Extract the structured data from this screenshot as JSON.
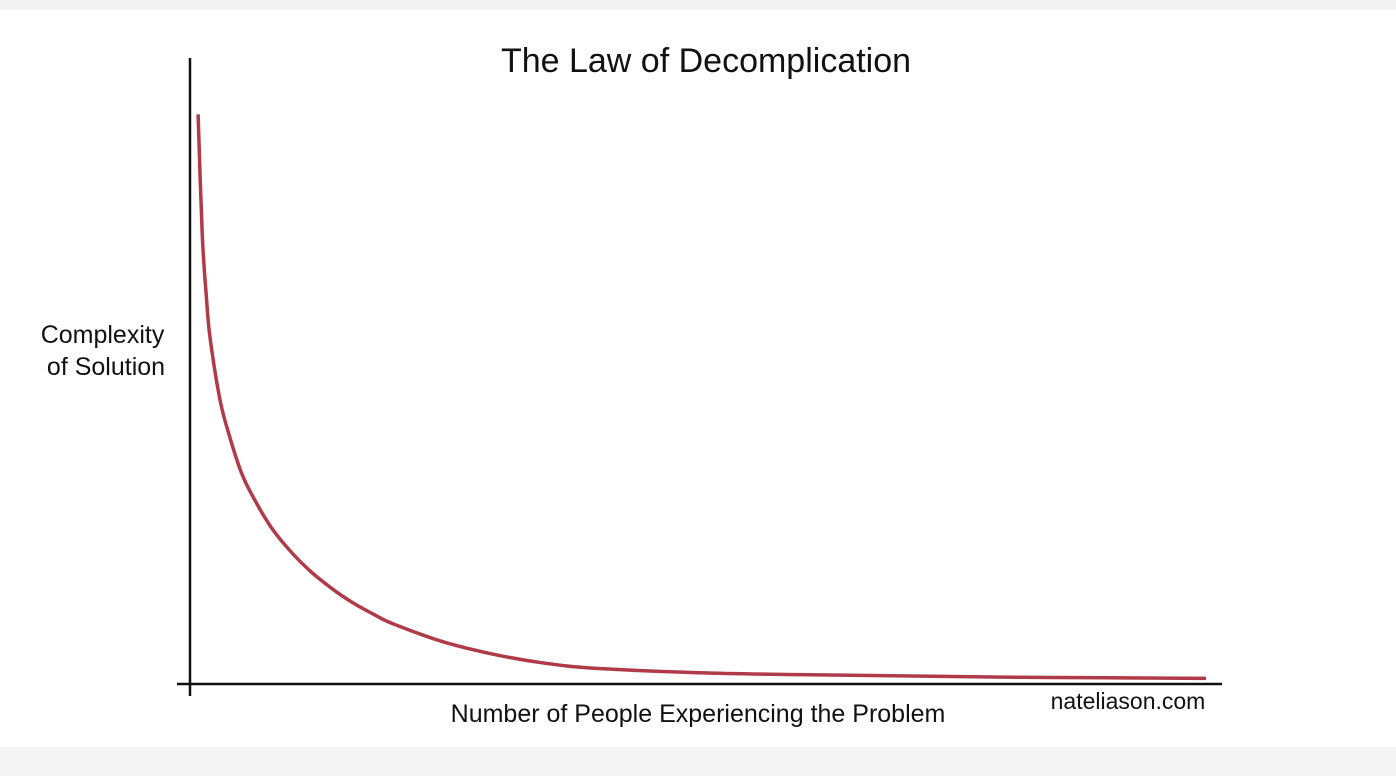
{
  "chart_data": {
    "type": "line",
    "title": "The Law of Decomplication",
    "xlabel": "Number of People Experiencing the Problem",
    "ylabel": [
      "Complexity",
      "of Solution"
    ],
    "watermark": "nateliason.com",
    "xlim": [
      0,
      100
    ],
    "ylim": [
      0,
      100
    ],
    "grid": false,
    "series": [
      {
        "color": "#b03a48",
        "x": [
          0.8,
          1.2,
          1.6,
          2,
          3,
          4,
          5,
          6,
          8,
          10,
          12,
          14,
          16,
          18,
          20,
          25,
          30,
          35,
          40,
          50,
          60,
          70,
          80,
          90,
          100
        ],
        "y": [
          91,
          72,
          62,
          55,
          45,
          39,
          34,
          30.5,
          25,
          21,
          17.8,
          15.2,
          13,
          11.2,
          9.6,
          6.7,
          4.7,
          3.3,
          2.5,
          1.8,
          1.5,
          1.3,
          1.1,
          1.0,
          0.9
        ]
      }
    ],
    "colors": {
      "curve": "#b03a48",
      "axis": "#111111"
    }
  }
}
